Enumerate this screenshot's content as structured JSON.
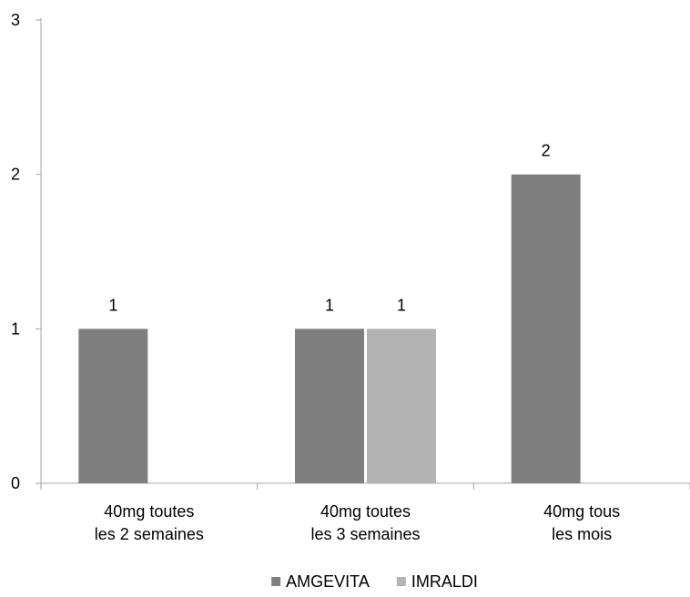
{
  "chart_data": {
    "type": "bar",
    "categories": [
      [
        "40mg toutes",
        "les 2 semaines"
      ],
      [
        "40mg toutes",
        "les 3 semaines"
      ],
      [
        "40mg tous",
        "les mois"
      ]
    ],
    "series": [
      {
        "name": "AMGEVITA",
        "values": [
          1,
          1,
          2
        ],
        "color": "#7f7f7f"
      },
      {
        "name": "IMRALDI",
        "values": [
          null,
          1,
          null
        ],
        "color": "#b3b3b3"
      }
    ],
    "ylim": [
      0,
      3
    ],
    "yticks": [
      0,
      1,
      2,
      3
    ],
    "grid": false,
    "data_labels": true,
    "legend": "bottom-center",
    "title": "",
    "xlabel": "",
    "ylabel": ""
  }
}
